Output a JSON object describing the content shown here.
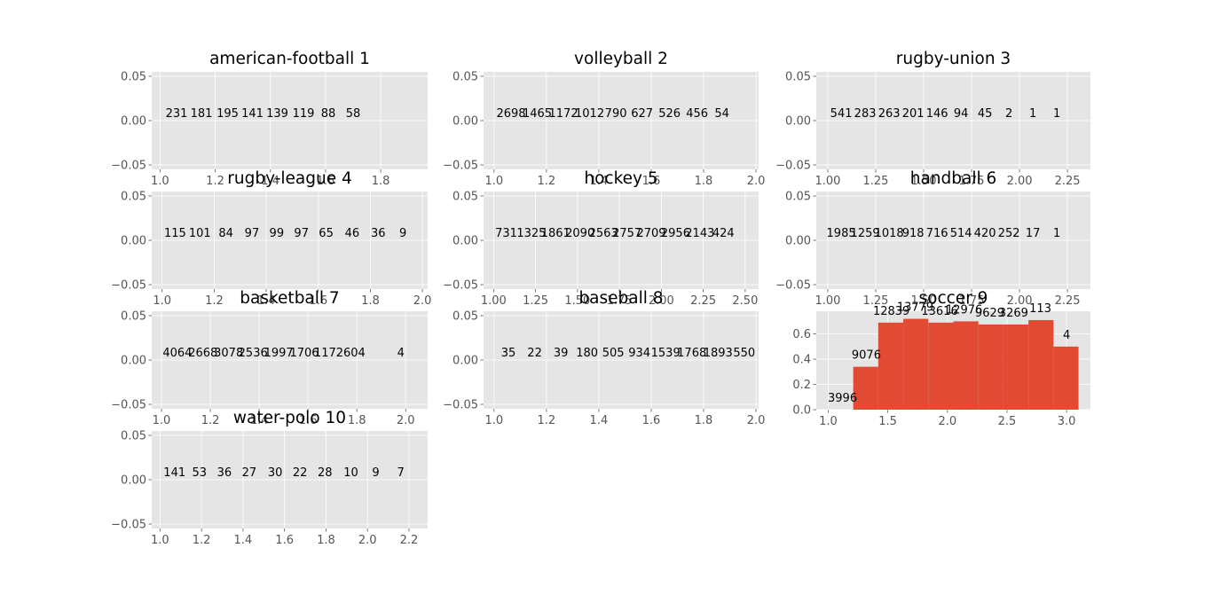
{
  "chart_data": [
    {
      "type": "bar",
      "title": "american-football 1",
      "x_ticks": [
        "1.0",
        "1.2",
        "1.4",
        "1.6",
        "1.8"
      ],
      "y_ticks": [
        "0.05",
        "0.00",
        "−0.05"
      ],
      "xlim": [
        0.97,
        1.97
      ],
      "ylim": [
        -0.055,
        0.055
      ],
      "x_tick_values": [
        1.0,
        1.2,
        1.4,
        1.6,
        1.8
      ],
      "y_tick_values": [
        0.05,
        0.0,
        -0.05
      ],
      "bars": [],
      "labels": [
        {
          "x": 1.06,
          "y": 0.0,
          "text": "231"
        },
        {
          "x": 1.15,
          "y": 0.0,
          "text": "181"
        },
        {
          "x": 1.245,
          "y": 0.0,
          "text": "195"
        },
        {
          "x": 1.335,
          "y": 0.0,
          "text": "141"
        },
        {
          "x": 1.425,
          "y": 0.0,
          "text": "139"
        },
        {
          "x": 1.52,
          "y": 0.0,
          "text": "119"
        },
        {
          "x": 1.61,
          "y": 0.0,
          "text": "88"
        },
        {
          "x": 1.7,
          "y": 0.0,
          "text": "58"
        }
      ]
    },
    {
      "type": "bar",
      "title": "volleyball 2",
      "x_ticks": [
        "1.0",
        "1.2",
        "1.4",
        "1.6",
        "1.8",
        "2.0"
      ],
      "y_ticks": [
        "0.05",
        "0.00",
        "−0.05"
      ],
      "xlim": [
        0.96,
        2.01
      ],
      "ylim": [
        -0.055,
        0.055
      ],
      "x_tick_values": [
        1.0,
        1.2,
        1.4,
        1.6,
        1.8,
        2.0
      ],
      "y_tick_values": [
        0.05,
        0.0,
        -0.05
      ],
      "bars": [],
      "labels": [
        {
          "x": 1.065,
          "y": 0.0,
          "text": "2698"
        },
        {
          "x": 1.165,
          "y": 0.0,
          "text": "1465"
        },
        {
          "x": 1.265,
          "y": 0.0,
          "text": "1172"
        },
        {
          "x": 1.365,
          "y": 0.0,
          "text": "1012"
        },
        {
          "x": 1.465,
          "y": 0.0,
          "text": "790"
        },
        {
          "x": 1.565,
          "y": 0.0,
          "text": "627"
        },
        {
          "x": 1.67,
          "y": 0.0,
          "text": "526"
        },
        {
          "x": 1.775,
          "y": 0.0,
          "text": "456"
        },
        {
          "x": 1.87,
          "y": 0.0,
          "text": "54"
        }
      ]
    },
    {
      "type": "bar",
      "title": "rugby-union 3",
      "x_ticks": [
        "1.00",
        "1.25",
        "1.50",
        "1.75",
        "2.00",
        "2.25"
      ],
      "y_ticks": [
        "0.05",
        "0.00",
        "−0.05"
      ],
      "xlim": [
        0.94,
        2.37
      ],
      "ylim": [
        -0.055,
        0.055
      ],
      "x_tick_values": [
        1.0,
        1.25,
        1.5,
        1.75,
        2.0,
        2.25
      ],
      "y_tick_values": [
        0.05,
        0.0,
        -0.05
      ],
      "bars": [],
      "labels": [
        {
          "x": 1.07,
          "y": 0.0,
          "text": "541"
        },
        {
          "x": 1.195,
          "y": 0.0,
          "text": "283"
        },
        {
          "x": 1.32,
          "y": 0.0,
          "text": "263"
        },
        {
          "x": 1.445,
          "y": 0.0,
          "text": "201"
        },
        {
          "x": 1.57,
          "y": 0.0,
          "text": "146"
        },
        {
          "x": 1.695,
          "y": 0.0,
          "text": "94"
        },
        {
          "x": 1.82,
          "y": 0.0,
          "text": "45"
        },
        {
          "x": 1.945,
          "y": 0.0,
          "text": "2"
        },
        {
          "x": 2.07,
          "y": 0.0,
          "text": "1"
        },
        {
          "x": 2.195,
          "y": 0.0,
          "text": "1"
        }
      ]
    },
    {
      "type": "bar",
      "title": "rugby-league 4",
      "x_ticks": [
        "1.0",
        "1.2",
        "1.4",
        "1.6",
        "1.8",
        "2.0"
      ],
      "y_ticks": [
        "0.05",
        "0.00",
        "−0.05"
      ],
      "xlim": [
        0.96,
        2.02
      ],
      "ylim": [
        -0.055,
        0.055
      ],
      "x_tick_values": [
        1.0,
        1.2,
        1.4,
        1.6,
        1.8,
        2.0
      ],
      "y_tick_values": [
        0.05,
        0.0,
        -0.05
      ],
      "bars": [],
      "labels": [
        {
          "x": 1.05,
          "y": 0.0,
          "text": "115"
        },
        {
          "x": 1.145,
          "y": 0.0,
          "text": "101"
        },
        {
          "x": 1.245,
          "y": 0.0,
          "text": "84"
        },
        {
          "x": 1.345,
          "y": 0.0,
          "text": "97"
        },
        {
          "x": 1.44,
          "y": 0.0,
          "text": "99"
        },
        {
          "x": 1.535,
          "y": 0.0,
          "text": "97"
        },
        {
          "x": 1.63,
          "y": 0.0,
          "text": "65"
        },
        {
          "x": 1.73,
          "y": 0.0,
          "text": "46"
        },
        {
          "x": 1.83,
          "y": 0.0,
          "text": "36"
        },
        {
          "x": 1.925,
          "y": 0.0,
          "text": "9"
        }
      ]
    },
    {
      "type": "bar",
      "title": "hockey 5",
      "x_ticks": [
        "1.00",
        "1.25",
        "1.50",
        "1.75",
        "2.00",
        "2.25",
        "2.50"
      ],
      "y_ticks": [
        "0.05",
        "0.00",
        "−0.05"
      ],
      "xlim": [
        0.94,
        2.58
      ],
      "ylim": [
        -0.055,
        0.055
      ],
      "x_tick_values": [
        1.0,
        1.25,
        1.5,
        1.75,
        2.0,
        2.25,
        2.5
      ],
      "y_tick_values": [
        0.05,
        0.0,
        -0.05
      ],
      "bars": [],
      "labels": [
        {
          "x": 1.075,
          "y": 0.0,
          "text": "731"
        },
        {
          "x": 1.225,
          "y": 0.0,
          "text": "1325"
        },
        {
          "x": 1.37,
          "y": 0.0,
          "text": "1861"
        },
        {
          "x": 1.515,
          "y": 0.0,
          "text": "2090"
        },
        {
          "x": 1.655,
          "y": 0.0,
          "text": "2563"
        },
        {
          "x": 1.795,
          "y": 0.0,
          "text": "2757"
        },
        {
          "x": 1.94,
          "y": 0.0,
          "text": "2709"
        },
        {
          "x": 2.085,
          "y": 0.0,
          "text": "2956"
        },
        {
          "x": 2.23,
          "y": 0.0,
          "text": "2143"
        },
        {
          "x": 2.37,
          "y": 0.0,
          "text": "424"
        }
      ]
    },
    {
      "type": "bar",
      "title": "handball 6",
      "x_ticks": [
        "1.00",
        "1.25",
        "1.50",
        "1.75",
        "2.00",
        "2.25"
      ],
      "y_ticks": [
        "0.05",
        "0.00",
        "−0.05"
      ],
      "xlim": [
        0.94,
        2.37
      ],
      "ylim": [
        -0.055,
        0.055
      ],
      "x_tick_values": [
        1.0,
        1.25,
        1.5,
        1.75,
        2.0,
        2.25
      ],
      "y_tick_values": [
        0.05,
        0.0,
        -0.05
      ],
      "bars": [],
      "labels": [
        {
          "x": 1.07,
          "y": 0.0,
          "text": "1985"
        },
        {
          "x": 1.195,
          "y": 0.0,
          "text": "1259"
        },
        {
          "x": 1.32,
          "y": 0.0,
          "text": "1018"
        },
        {
          "x": 1.445,
          "y": 0.0,
          "text": "918"
        },
        {
          "x": 1.57,
          "y": 0.0,
          "text": "716"
        },
        {
          "x": 1.695,
          "y": 0.0,
          "text": "514"
        },
        {
          "x": 1.82,
          "y": 0.0,
          "text": "420"
        },
        {
          "x": 1.945,
          "y": 0.0,
          "text": "252"
        },
        {
          "x": 2.07,
          "y": 0.0,
          "text": "17"
        },
        {
          "x": 2.195,
          "y": 0.0,
          "text": "1"
        }
      ]
    },
    {
      "type": "bar",
      "title": "basketball 7",
      "x_ticks": [
        "1.0",
        "1.2",
        "1.4",
        "1.6",
        "1.8",
        "2.0"
      ],
      "y_ticks": [
        "0.05",
        "0.00",
        "−0.05"
      ],
      "xlim": [
        0.96,
        2.09
      ],
      "ylim": [
        -0.055,
        0.055
      ],
      "x_tick_values": [
        1.0,
        1.2,
        1.4,
        1.6,
        1.8,
        2.0
      ],
      "y_tick_values": [
        0.05,
        0.0,
        -0.05
      ],
      "bars": [],
      "labels": [
        {
          "x": 1.065,
          "y": 0.0,
          "text": "4064"
        },
        {
          "x": 1.17,
          "y": 0.0,
          "text": "2668"
        },
        {
          "x": 1.275,
          "y": 0.0,
          "text": "3078"
        },
        {
          "x": 1.375,
          "y": 0.0,
          "text": "2536"
        },
        {
          "x": 1.48,
          "y": 0.0,
          "text": "1997"
        },
        {
          "x": 1.585,
          "y": 0.0,
          "text": "1706"
        },
        {
          "x": 1.685,
          "y": 0.0,
          "text": "1172"
        },
        {
          "x": 1.79,
          "y": 0.0,
          "text": "604"
        },
        {
          "x": 1.98,
          "y": 0.0,
          "text": "4"
        }
      ]
    },
    {
      "type": "bar",
      "title": "baseball 8",
      "x_ticks": [
        "1.0",
        "1.2",
        "1.4",
        "1.6",
        "1.8",
        "2.0"
      ],
      "y_ticks": [
        "0.05",
        "0.00",
        "−0.05"
      ],
      "xlim": [
        0.96,
        2.01
      ],
      "ylim": [
        -0.055,
        0.055
      ],
      "x_tick_values": [
        1.0,
        1.2,
        1.4,
        1.6,
        1.8,
        2.0
      ],
      "y_tick_values": [
        0.05,
        0.0,
        -0.05
      ],
      "bars": [],
      "labels": [
        {
          "x": 1.055,
          "y": 0.0,
          "text": "35"
        },
        {
          "x": 1.155,
          "y": 0.0,
          "text": "22"
        },
        {
          "x": 1.255,
          "y": 0.0,
          "text": "39"
        },
        {
          "x": 1.355,
          "y": 0.0,
          "text": "180"
        },
        {
          "x": 1.455,
          "y": 0.0,
          "text": "505"
        },
        {
          "x": 1.555,
          "y": 0.0,
          "text": "934"
        },
        {
          "x": 1.655,
          "y": 0.0,
          "text": "1539"
        },
        {
          "x": 1.755,
          "y": 0.0,
          "text": "1768"
        },
        {
          "x": 1.855,
          "y": 0.0,
          "text": "1893"
        },
        {
          "x": 1.955,
          "y": 0.0,
          "text": "550"
        }
      ]
    },
    {
      "type": "bar",
      "title": "soccer 9",
      "x_ticks": [
        "1.0",
        "1.5",
        "2.0",
        "2.5",
        "3.0"
      ],
      "y_ticks": [
        "0.6",
        "0.4",
        "0.2",
        "0.0"
      ],
      "xlim": [
        0.9,
        3.2
      ],
      "ylim": [
        0.0,
        0.78
      ],
      "x_tick_values": [
        1.0,
        1.5,
        2.0,
        2.5,
        3.0
      ],
      "y_tick_values": [
        0.6,
        0.4,
        0.2,
        0.0
      ],
      "bars": [
        {
          "x0": 1.0,
          "x1": 1.21,
          "height": 0.0
        },
        {
          "x0": 1.21,
          "x1": 1.42,
          "height": 0.34
        },
        {
          "x0": 1.42,
          "x1": 1.63,
          "height": 0.69
        },
        {
          "x0": 1.63,
          "x1": 1.84,
          "height": 0.72
        },
        {
          "x0": 1.84,
          "x1": 2.05,
          "height": 0.69
        },
        {
          "x0": 2.05,
          "x1": 2.26,
          "height": 0.7
        },
        {
          "x0": 2.26,
          "x1": 2.47,
          "height": 0.675
        },
        {
          "x0": 2.47,
          "x1": 2.68,
          "height": 0.675
        },
        {
          "x0": 2.68,
          "x1": 2.89,
          "height": 0.71
        },
        {
          "x0": 2.89,
          "x1": 3.1,
          "height": 0.5
        }
      ],
      "labels": [
        {
          "x": 1.12,
          "y": 0.035,
          "text": "3996"
        },
        {
          "x": 1.32,
          "y": 0.375,
          "text": "9076"
        },
        {
          "x": 1.53,
          "y": 0.725,
          "text": "12839"
        },
        {
          "x": 1.73,
          "y": 0.755,
          "text": "13779"
        },
        {
          "x": 1.935,
          "y": 0.725,
          "text": "13616"
        },
        {
          "x": 2.14,
          "y": 0.735,
          "text": "12976"
        },
        {
          "x": 2.355,
          "y": 0.71,
          "text": "9629"
        },
        {
          "x": 2.555,
          "y": 0.71,
          "text": "3269"
        },
        {
          "x": 2.78,
          "y": 0.745,
          "text": "113"
        },
        {
          "x": 3.0,
          "y": 0.535,
          "text": "4"
        }
      ]
    },
    {
      "type": "bar",
      "title": "water-polo 10",
      "x_ticks": [
        "1.0",
        "1.2",
        "1.4",
        "1.6",
        "1.8",
        "2.0",
        "2.2"
      ],
      "y_ticks": [
        "0.05",
        "0.00",
        "−0.05"
      ],
      "xlim": [
        0.96,
        2.29
      ],
      "ylim": [
        -0.055,
        0.055
      ],
      "x_tick_values": [
        1.0,
        1.2,
        1.4,
        1.6,
        1.8,
        2.0,
        2.2
      ],
      "y_tick_values": [
        0.05,
        0.0,
        -0.05
      ],
      "bars": [],
      "labels": [
        {
          "x": 1.07,
          "y": 0.0,
          "text": "141"
        },
        {
          "x": 1.19,
          "y": 0.0,
          "text": "53"
        },
        {
          "x": 1.31,
          "y": 0.0,
          "text": "36"
        },
        {
          "x": 1.43,
          "y": 0.0,
          "text": "27"
        },
        {
          "x": 1.555,
          "y": 0.0,
          "text": "30"
        },
        {
          "x": 1.675,
          "y": 0.0,
          "text": "22"
        },
        {
          "x": 1.795,
          "y": 0.0,
          "text": "28"
        },
        {
          "x": 1.92,
          "y": 0.0,
          "text": "10"
        },
        {
          "x": 2.04,
          "y": 0.0,
          "text": "9"
        },
        {
          "x": 2.16,
          "y": 0.0,
          "text": "7"
        }
      ]
    }
  ]
}
